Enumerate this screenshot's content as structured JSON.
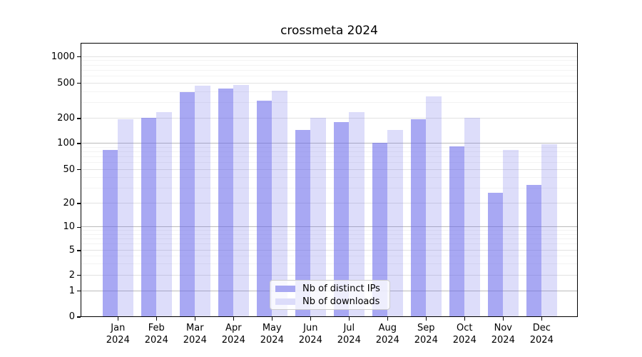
{
  "title": "crossmeta 2024",
  "chart_data": {
    "type": "bar",
    "title": "crossmeta 2024",
    "x_tick_months": [
      "Jan",
      "Feb",
      "Mar",
      "Apr",
      "May",
      "Jun",
      "Jul",
      "Aug",
      "Sep",
      "Oct",
      "Nov",
      "Dec"
    ],
    "x_tick_year": "2024",
    "y_ticks": [
      0,
      1,
      2,
      5,
      10,
      20,
      50,
      100,
      200,
      500,
      1000
    ],
    "y_scale": "symlog",
    "grid": true,
    "legend_position": "lower center",
    "series": [
      {
        "name": "Nb of distinct IPs",
        "color_hex": "#a8a8f2",
        "color_rgba": "rgba(99,99,233,0.56)",
        "values": [
          85,
          205,
          395,
          435,
          320,
          145,
          180,
          103,
          195,
          93,
          27,
          33
        ]
      },
      {
        "name": "Nb of downloads",
        "color_hex": "#dcdcfa",
        "color_rgba": "rgba(99,99,233,0.22)",
        "values": [
          195,
          235,
          470,
          480,
          415,
          205,
          238,
          146,
          355,
          205,
          85,
          98
        ]
      }
    ]
  },
  "colors": {
    "axis": "#000000",
    "grid_major": "#e2e2e2",
    "grid_decade": "#bbbbbb",
    "grid_minor": "#f3f3f3",
    "text": "#000000",
    "legend_border": "#cccccc",
    "legend_background": "rgba(255,255,255,0.8)"
  }
}
